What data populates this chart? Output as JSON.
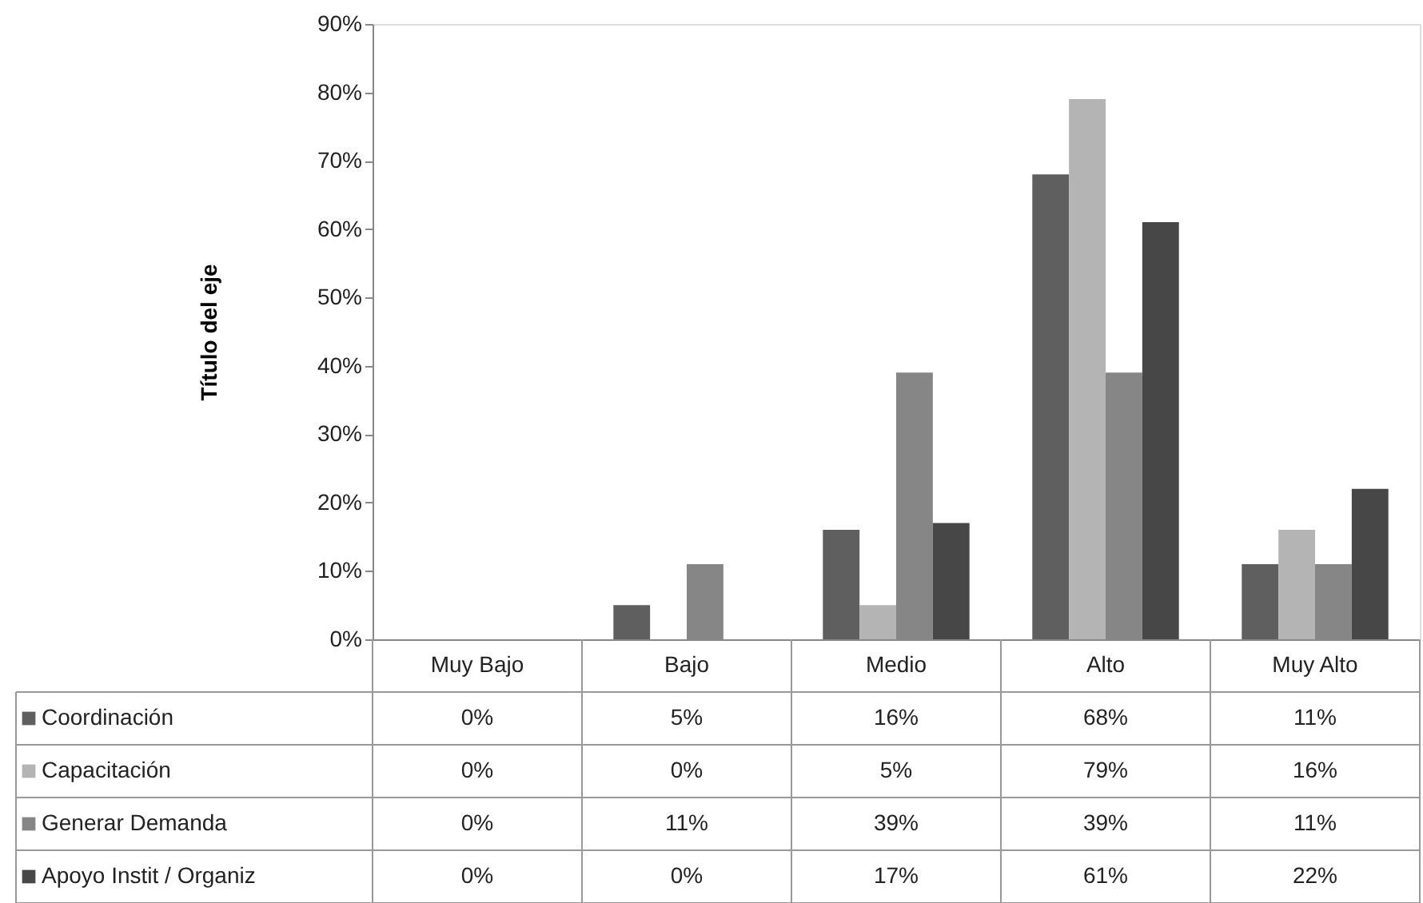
{
  "chart_data": {
    "type": "bar",
    "ylabel": "Título del eje",
    "categories": [
      "Muy Bajo",
      "Bajo",
      "Medio",
      "Alto",
      "Muy Alto"
    ],
    "series": [
      {
        "name": "Coordinación",
        "color": "#5f5f5f",
        "values": [
          0,
          5,
          16,
          68,
          11
        ],
        "value_labels": [
          "0%",
          "5%",
          "16%",
          "68%",
          "11%"
        ]
      },
      {
        "name": "Capacitación",
        "color": "#b4b4b4",
        "values": [
          0,
          0,
          5,
          79,
          16
        ],
        "value_labels": [
          "0%",
          "0%",
          "5%",
          "79%",
          "16%"
        ]
      },
      {
        "name": "Generar Demanda",
        "color": "#868686",
        "values": [
          0,
          11,
          39,
          39,
          11
        ],
        "value_labels": [
          "0%",
          "11%",
          "39%",
          "39%",
          "11%"
        ]
      },
      {
        "name": "Apoyo Instit / Organiz",
        "color": "#474747",
        "values": [
          0,
          0,
          17,
          61,
          22
        ],
        "value_labels": [
          "0%",
          "0%",
          "17%",
          "61%",
          "22%"
        ]
      }
    ],
    "ylim": [
      0,
      90
    ],
    "yticks": [
      {
        "value": 0,
        "label": "0%"
      },
      {
        "value": 10,
        "label": "10%"
      },
      {
        "value": 20,
        "label": "20%"
      },
      {
        "value": 30,
        "label": "30%"
      },
      {
        "value": 40,
        "label": "40%"
      },
      {
        "value": 50,
        "label": "50%"
      },
      {
        "value": 60,
        "label": "60%"
      },
      {
        "value": 70,
        "label": "70%"
      },
      {
        "value": 80,
        "label": "80%"
      },
      {
        "value": 90,
        "label": "90%"
      }
    ],
    "grid": false,
    "legend": "bottom"
  }
}
